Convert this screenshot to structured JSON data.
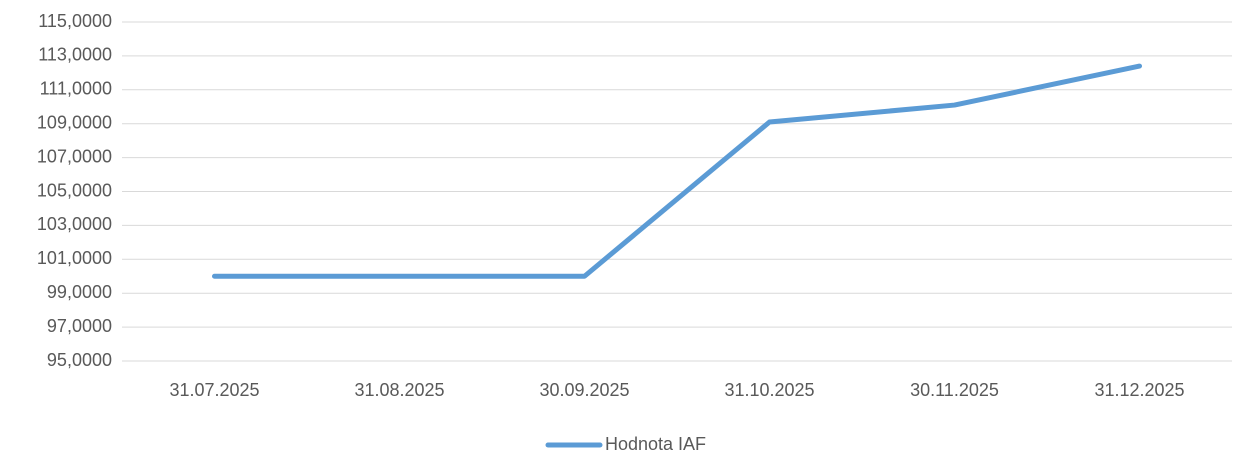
{
  "chart_data": {
    "type": "line",
    "categories": [
      "31.07.2025",
      "31.08.2025",
      "30.09.2025",
      "31.10.2025",
      "30.11.2025",
      "31.12.2025"
    ],
    "series": [
      {
        "name": "Hodnota IAF",
        "color": "#5b9bd5",
        "values": [
          100.0,
          100.0,
          100.0,
          109.1,
          110.1,
          112.4
        ]
      }
    ],
    "ylim": [
      95,
      115
    ],
    "yticks": [
      {
        "value": 95,
        "label": "95,0000"
      },
      {
        "value": 97,
        "label": "97,0000"
      },
      {
        "value": 99,
        "label": "99,0000"
      },
      {
        "value": 101,
        "label": "101,0000"
      },
      {
        "value": 103,
        "label": "103,0000"
      },
      {
        "value": 105,
        "label": "105,0000"
      },
      {
        "value": 107,
        "label": "107,0000"
      },
      {
        "value": 109,
        "label": "109,0000"
      },
      {
        "value": 111,
        "label": "111,0000"
      },
      {
        "value": 113,
        "label": "113,0000"
      },
      {
        "value": 115,
        "label": "115,0000"
      }
    ],
    "grid": true,
    "legend": "bottom"
  }
}
